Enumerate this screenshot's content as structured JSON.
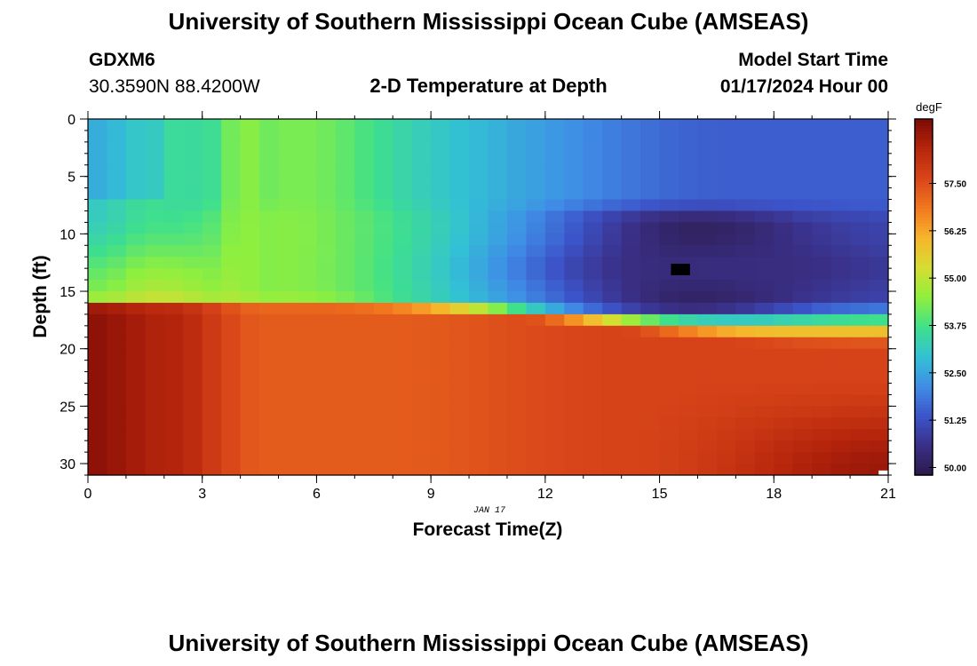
{
  "title": "University of Southern Mississippi Ocean Cube (AMSEAS)",
  "footer_title": "University of Southern Mississippi Ocean Cube (AMSEAS)",
  "station": {
    "id": "GDXM6",
    "coords": "30.3590N  88.4200W"
  },
  "model": {
    "start_label": "Model Start Time",
    "start_value": "01/17/2024 Hour 00"
  },
  "colors": {
    "ramp": [
      "#2c1a4a",
      "#3a2f86",
      "#3c54c9",
      "#3f8de6",
      "#32c1d4",
      "#3fe08c",
      "#8fef3e",
      "#d6dd33",
      "#f7b52c",
      "#f2791f",
      "#d9461a",
      "#b7260c",
      "#7e0a06"
    ]
  },
  "chart_data": {
    "type": "heatmap",
    "title": "2-D Temperature at Depth",
    "xlabel": "Forecast Time(Z)",
    "ylabel": "Depth (ft)",
    "x_range": [
      0,
      21
    ],
    "y_range": [
      0,
      31
    ],
    "x_ticks": [
      0,
      3,
      6,
      9,
      12,
      15,
      18,
      21
    ],
    "y_ticks": [
      0,
      5,
      10,
      15,
      20,
      25,
      30
    ],
    "date_label": "JAN 17",
    "colorbar": {
      "unit": "degF",
      "range": [
        49.8,
        59.2
      ],
      "ticks": [
        "50.00",
        "51.25",
        "52.50",
        "53.75",
        "55.00",
        "56.25",
        "57.50"
      ]
    },
    "grid": {
      "nx": 42,
      "ny": 31,
      "dx": 0.5,
      "dy": 1.0
    },
    "features": {
      "upper_layer_temp_range": [
        53.0,
        55.4
      ],
      "cold_core_min_temp": 49.9,
      "cold_core_depth_ft": 13,
      "cold_core_time_h": 16,
      "bottom_layer_temp": 57.8,
      "bottom_max_temp": 59.0
    }
  }
}
